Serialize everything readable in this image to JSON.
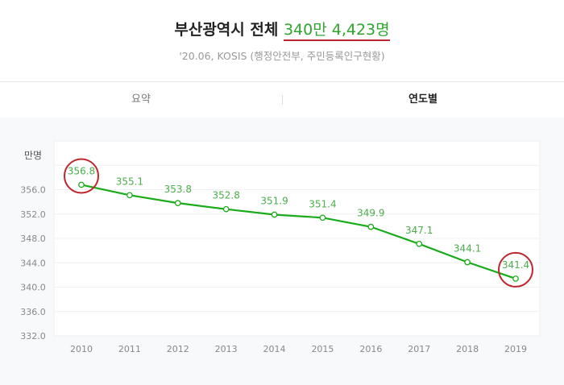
{
  "header": {
    "title_prefix": "부산광역시 전체",
    "title_value": "340만 4,423명",
    "subtitle": "'20.06, KOSIS (행정안전부, 주민등록인구현황)"
  },
  "tabs": [
    {
      "label": "요약",
      "active": false
    },
    {
      "label": "연도별",
      "active": true
    }
  ],
  "colors": {
    "line": "#1aab1a",
    "label": "#4cae4c",
    "highlight": "#c0262d"
  },
  "chart_data": {
    "type": "line",
    "ylabel": "만명",
    "categories": [
      "2010",
      "2011",
      "2012",
      "2013",
      "2014",
      "2015",
      "2016",
      "2017",
      "2018",
      "2019"
    ],
    "values": [
      356.8,
      355.1,
      353.8,
      352.8,
      351.9,
      351.4,
      349.9,
      347.1,
      344.1,
      341.4
    ],
    "value_labels": [
      "356.8",
      "355.1",
      "353.8",
      "352.8",
      "351.9",
      "351.4",
      "349.9",
      "347.1",
      "344.1",
      "341.4"
    ],
    "yticks": [
      "332.0",
      "336.0",
      "340.0",
      "344.0",
      "348.0",
      "352.0",
      "356.0"
    ],
    "ylim": [
      332,
      364
    ],
    "grid": true,
    "highlighted": [
      "2010",
      "2019"
    ]
  }
}
